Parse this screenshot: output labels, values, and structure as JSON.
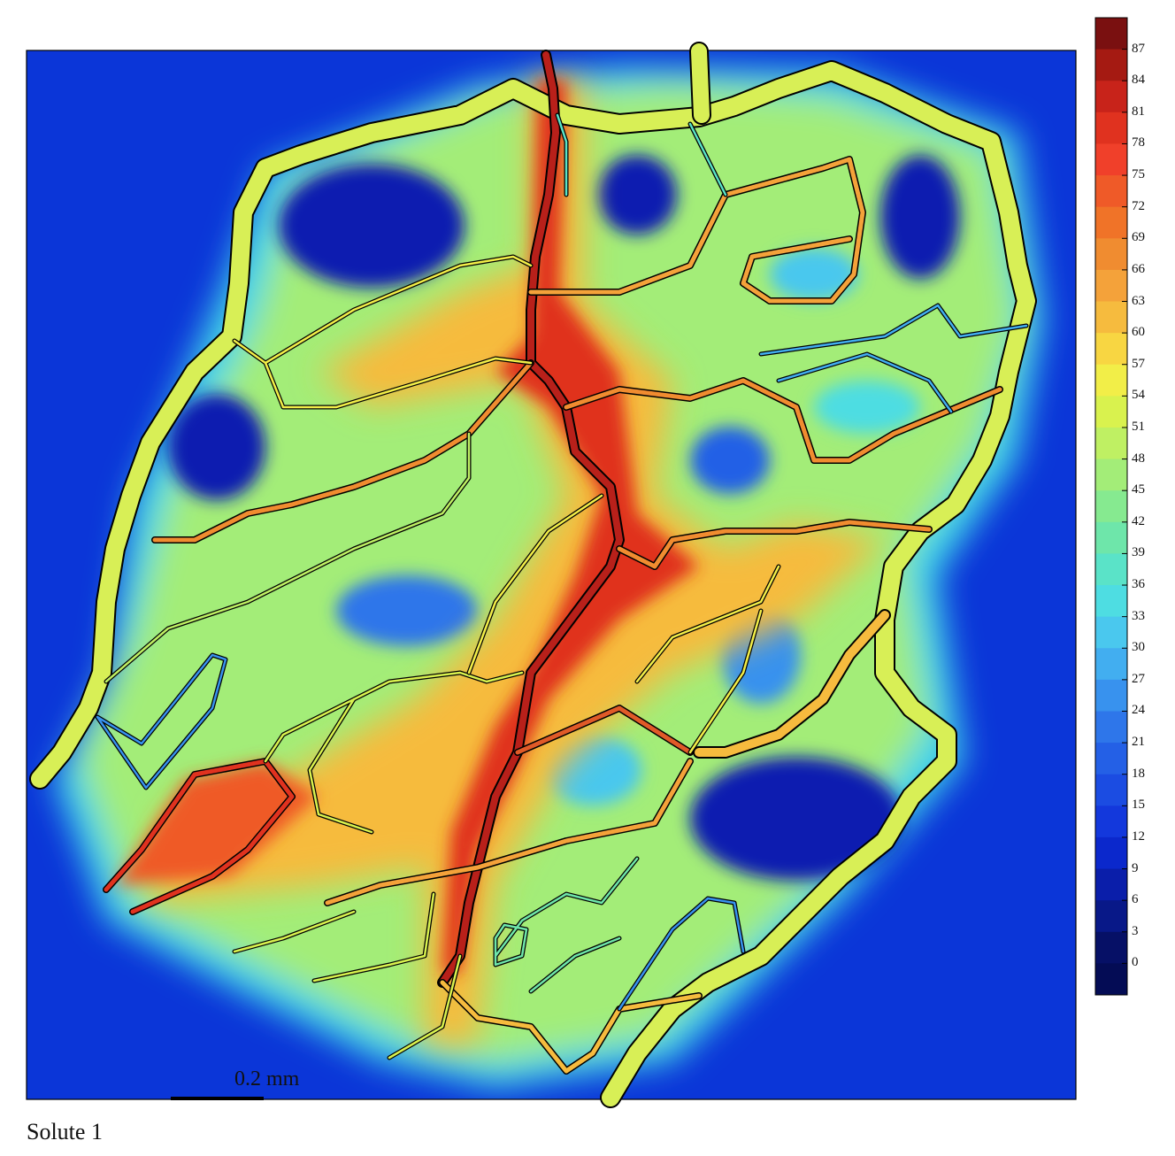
{
  "caption": "Solute 1",
  "scale_bar": {
    "label": "0.2 mm"
  },
  "colorbar": {
    "ticks": [
      "87",
      "84",
      "81",
      "78",
      "75",
      "72",
      "69",
      "66",
      "63",
      "60",
      "57",
      "54",
      "51",
      "48",
      "45",
      "42",
      "39",
      "36",
      "33",
      "30",
      "27",
      "24",
      "21",
      "18",
      "15",
      "12",
      "9",
      "6",
      "3",
      "0"
    ],
    "colors": [
      "#7a1010",
      "#a51a12",
      "#c8231a",
      "#e0321f",
      "#f0402a",
      "#ef5a28",
      "#f07328",
      "#f08c30",
      "#f4a23a",
      "#f6bb3e",
      "#f8d642",
      "#f2ee48",
      "#d9f24e",
      "#bff063",
      "#a3ed78",
      "#86ea90",
      "#6ee6aa",
      "#5ae3c8",
      "#4edde2",
      "#4ac8ee",
      "#42aef0",
      "#3892ee",
      "#2e76ea",
      "#2460e6",
      "#1b4ce2",
      "#1338dc",
      "#0b28cc",
      "#0a1eaa",
      "#081888",
      "#061066"
    ]
  },
  "colors": {
    "low": "#0a1fb0",
    "background": "#0b36d8",
    "mid": "#3fd5ea",
    "warm": "#e8f04c",
    "hot": "#d7331e",
    "vessel_fill_large": "#d8ef56",
    "vessel_outline": "#000000"
  }
}
